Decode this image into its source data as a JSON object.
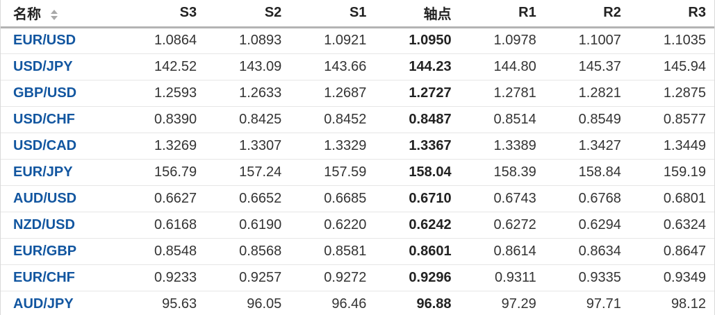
{
  "theme": {
    "link_color": "#1256A0",
    "text_color": "#333333",
    "header_text_color": "#222222",
    "header_border_color": "#b3b3b3",
    "row_border_color": "#e6e6e6",
    "outer_border_color": "#d9d9d9",
    "sort_icon_color": "#a9a9a9",
    "bg_color": "#ffffff"
  },
  "icons": {
    "name_sort": "sort-arrows-icon"
  },
  "table": {
    "columns": [
      {
        "label": "名称",
        "sortable": true
      },
      {
        "label": "S3"
      },
      {
        "label": "S2"
      },
      {
        "label": "S1"
      },
      {
        "label": "轴点"
      },
      {
        "label": "R1"
      },
      {
        "label": "R2"
      },
      {
        "label": "R3"
      }
    ],
    "rows": [
      {
        "pair": "EUR/USD",
        "s3": "1.0864",
        "s2": "1.0893",
        "s1": "1.0921",
        "pivot": "1.0950",
        "r1": "1.0978",
        "r2": "1.1007",
        "r3": "1.1035"
      },
      {
        "pair": "USD/JPY",
        "s3": "142.52",
        "s2": "143.09",
        "s1": "143.66",
        "pivot": "144.23",
        "r1": "144.80",
        "r2": "145.37",
        "r3": "145.94"
      },
      {
        "pair": "GBP/USD",
        "s3": "1.2593",
        "s2": "1.2633",
        "s1": "1.2687",
        "pivot": "1.2727",
        "r1": "1.2781",
        "r2": "1.2821",
        "r3": "1.2875"
      },
      {
        "pair": "USD/CHF",
        "s3": "0.8390",
        "s2": "0.8425",
        "s1": "0.8452",
        "pivot": "0.8487",
        "r1": "0.8514",
        "r2": "0.8549",
        "r3": "0.8577"
      },
      {
        "pair": "USD/CAD",
        "s3": "1.3269",
        "s2": "1.3307",
        "s1": "1.3329",
        "pivot": "1.3367",
        "r1": "1.3389",
        "r2": "1.3427",
        "r3": "1.3449"
      },
      {
        "pair": "EUR/JPY",
        "s3": "156.79",
        "s2": "157.24",
        "s1": "157.59",
        "pivot": "158.04",
        "r1": "158.39",
        "r2": "158.84",
        "r3": "159.19"
      },
      {
        "pair": "AUD/USD",
        "s3": "0.6627",
        "s2": "0.6652",
        "s1": "0.6685",
        "pivot": "0.6710",
        "r1": "0.6743",
        "r2": "0.6768",
        "r3": "0.6801"
      },
      {
        "pair": "NZD/USD",
        "s3": "0.6168",
        "s2": "0.6190",
        "s1": "0.6220",
        "pivot": "0.6242",
        "r1": "0.6272",
        "r2": "0.6294",
        "r3": "0.6324"
      },
      {
        "pair": "EUR/GBP",
        "s3": "0.8548",
        "s2": "0.8568",
        "s1": "0.8581",
        "pivot": "0.8601",
        "r1": "0.8614",
        "r2": "0.8634",
        "r3": "0.8647"
      },
      {
        "pair": "EUR/CHF",
        "s3": "0.9233",
        "s2": "0.9257",
        "s1": "0.9272",
        "pivot": "0.9296",
        "r1": "0.9311",
        "r2": "0.9335",
        "r3": "0.9349"
      },
      {
        "pair": "AUD/JPY",
        "s3": "95.63",
        "s2": "96.05",
        "s1": "96.46",
        "pivot": "96.88",
        "r1": "97.29",
        "r2": "97.71",
        "r3": "98.12"
      }
    ]
  }
}
